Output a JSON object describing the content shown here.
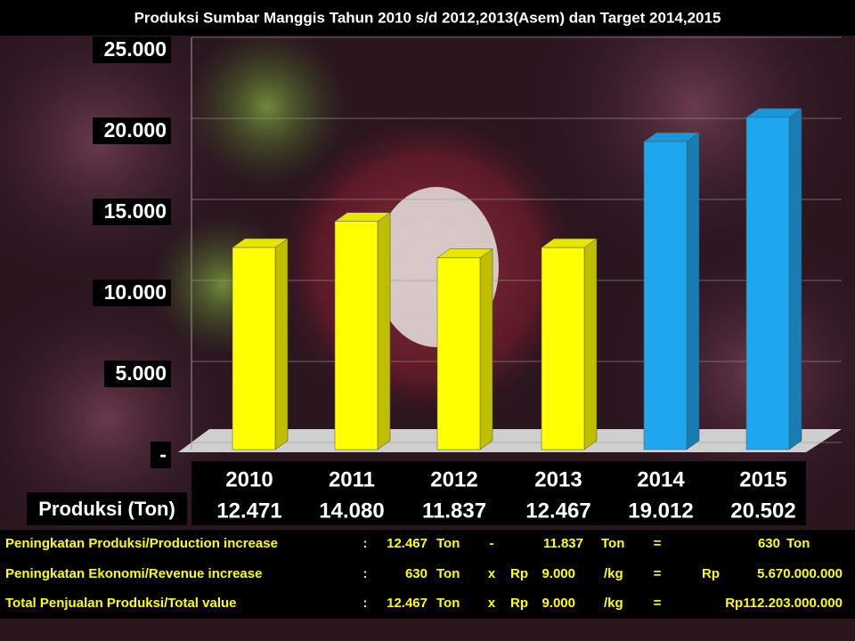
{
  "chart_data": {
    "type": "bar",
    "title": "Produksi Sumbar Manggis Tahun 2010 s/d 2012,2013(Asem)  dan Target  2014,2015",
    "categories": [
      "2010",
      "2011",
      "2012",
      "2013",
      "2014",
      "2015"
    ],
    "values": [
      12471,
      14080,
      11837,
      12467,
      19012,
      20502
    ],
    "value_labels": [
      "12.471",
      "14.080",
      "11.837",
      "12.467",
      "19.012",
      "20.502"
    ],
    "value_row_label": "Produksi (Ton)",
    "colors": [
      "#ffff00",
      "#ffff00",
      "#ffff00",
      "#ffff00",
      "#1ea7ee",
      "#1ea7ee"
    ],
    "ylim": [
      0,
      25000
    ],
    "yticks": [
      {
        "value": 0,
        "label": "-"
      },
      {
        "value": 5000,
        "label": "5.000"
      },
      {
        "value": 10000,
        "label": "10.000"
      },
      {
        "value": 15000,
        "label": "15.000"
      },
      {
        "value": 20000,
        "label": "20.000"
      },
      {
        "value": 25000,
        "label": "25.000"
      }
    ],
    "grid": true
  },
  "table": {
    "rows": [
      [
        "Peningkatan Produksi/Production increase",
        ":",
        "12.467",
        "Ton",
        "-",
        "11.837",
        "Ton",
        "=",
        "630",
        "Ton"
      ],
      [
        "Peningkatan Ekonomi/Revenue increase",
        ":",
        "630",
        "Ton",
        "x",
        "Rp",
        "9.000",
        "/kg",
        "=",
        "Rp",
        "5.670.000.000"
      ],
      [
        "Total Penjualan Produksi/Total  value",
        ":",
        "12.467",
        "Ton",
        "x",
        "Rp",
        "9.000",
        "/kg",
        "=",
        "Rp112.203.000.000"
      ]
    ]
  }
}
